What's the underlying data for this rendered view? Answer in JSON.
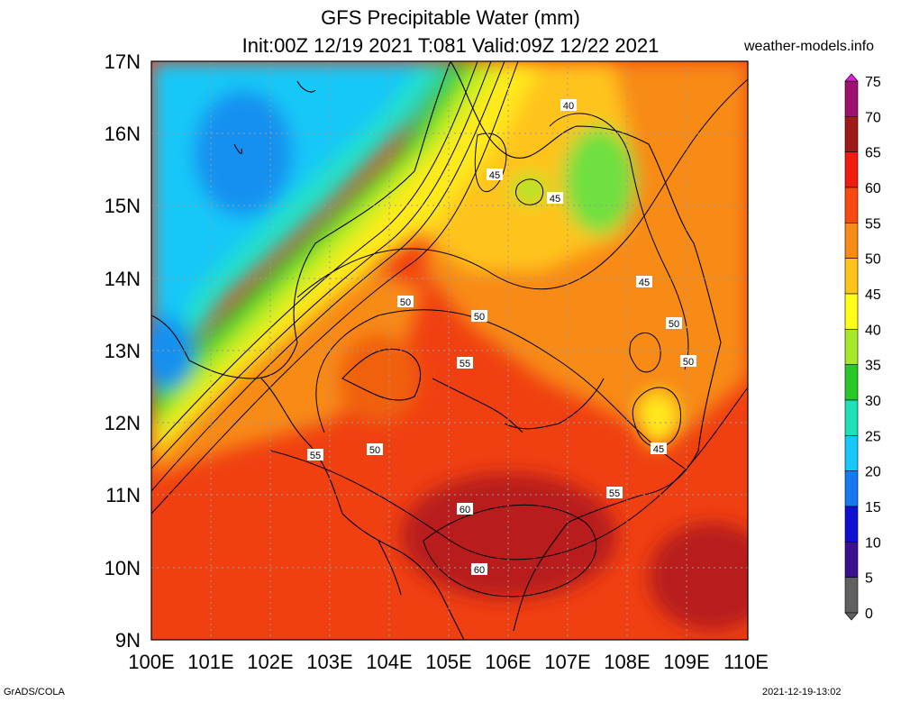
{
  "header": {
    "title": "GFS Precipitable Water (mm)",
    "subtitle": "Init:00Z 12/19 2021 T:081 Valid:09Z 12/22 2021",
    "site": "weather-models.info"
  },
  "footer": {
    "left": "GrADS/COLA",
    "right": "2021-12-19-13:02"
  },
  "map": {
    "lat_labels": [
      "17N",
      "16N",
      "15N",
      "14N",
      "13N",
      "12N",
      "11N",
      "10N",
      "9N"
    ],
    "lon_labels": [
      "100E",
      "101E",
      "102E",
      "103E",
      "104E",
      "105E",
      "106E",
      "107E",
      "108E",
      "109E",
      "110E"
    ],
    "contour_labels": [
      "40",
      "45",
      "45",
      "45",
      "50",
      "50",
      "50",
      "50",
      "55",
      "55",
      "55",
      "50",
      "45",
      "60",
      "60"
    ]
  },
  "colorbar": {
    "labels": [
      "75",
      "70",
      "65",
      "60",
      "55",
      "50",
      "45",
      "40",
      "35",
      "30",
      "25",
      "20",
      "15",
      "10",
      "5",
      "0"
    ],
    "colors": [
      "#e01fdf",
      "#a01070",
      "#a01a1a",
      "#f01c10",
      "#f84a10",
      "#f88a18",
      "#ffc41a",
      "#ffff1a",
      "#a8e82a",
      "#28c828",
      "#20e0b8",
      "#18c8f8",
      "#1878f0",
      "#1010d0",
      "#3a1090",
      "#606060"
    ]
  }
}
